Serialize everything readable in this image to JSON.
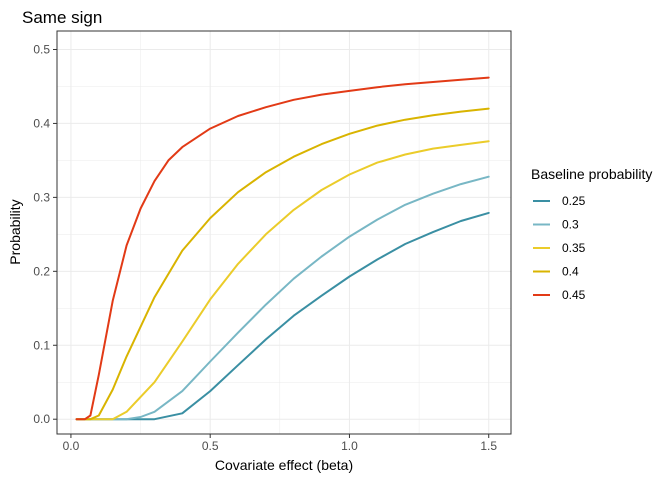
{
  "chart_data": {
    "type": "line",
    "title": "Same sign",
    "xlabel": "Covariate effect (beta)",
    "ylabel": "Probability",
    "xlim": [
      -0.05,
      1.58
    ],
    "ylim": [
      -0.02,
      0.525
    ],
    "x_ticks": [
      0.0,
      0.5,
      1.0,
      1.5
    ],
    "x_tick_labels": [
      "0.0",
      "0.5",
      "1.0",
      "1.5"
    ],
    "y_ticks": [
      0.0,
      0.1,
      0.2,
      0.3,
      0.4,
      0.5
    ],
    "y_tick_labels": [
      "0.0",
      "0.1",
      "0.2",
      "0.3",
      "0.4",
      "0.5"
    ],
    "grid": true,
    "legend": {
      "title": "Baseline probability",
      "placement": "right"
    },
    "series": [
      {
        "name": "0.25",
        "color": "#3a8fa3",
        "x": [
          0.02,
          0.1,
          0.2,
          0.3,
          0.4,
          0.5,
          0.6,
          0.7,
          0.8,
          0.9,
          1.0,
          1.1,
          1.2,
          1.3,
          1.4,
          1.5
        ],
        "y": [
          0.0,
          0.0,
          0.0,
          0.0,
          0.008,
          0.038,
          0.073,
          0.108,
          0.14,
          0.167,
          0.193,
          0.216,
          0.237,
          0.253,
          0.268,
          0.279
        ]
      },
      {
        "name": "0.3",
        "color": "#78b7c5",
        "x": [
          0.02,
          0.1,
          0.2,
          0.25,
          0.3,
          0.4,
          0.5,
          0.6,
          0.7,
          0.8,
          0.9,
          1.0,
          1.1,
          1.2,
          1.3,
          1.4,
          1.5
        ],
        "y": [
          0.0,
          0.0,
          0.0,
          0.003,
          0.01,
          0.038,
          0.078,
          0.117,
          0.155,
          0.19,
          0.22,
          0.247,
          0.27,
          0.29,
          0.305,
          0.318,
          0.328
        ]
      },
      {
        "name": "0.35",
        "color": "#ebcc2a",
        "x": [
          0.02,
          0.1,
          0.15,
          0.2,
          0.3,
          0.4,
          0.5,
          0.6,
          0.7,
          0.8,
          0.9,
          1.0,
          1.1,
          1.2,
          1.3,
          1.4,
          1.5
        ],
        "y": [
          0.0,
          0.0,
          0.0,
          0.01,
          0.05,
          0.105,
          0.162,
          0.21,
          0.25,
          0.283,
          0.31,
          0.331,
          0.347,
          0.358,
          0.366,
          0.371,
          0.376
        ]
      },
      {
        "name": "0.4",
        "color": "#d9b400",
        "x": [
          0.02,
          0.07,
          0.1,
          0.15,
          0.2,
          0.3,
          0.4,
          0.5,
          0.6,
          0.7,
          0.8,
          0.9,
          1.0,
          1.1,
          1.2,
          1.3,
          1.4,
          1.5
        ],
        "y": [
          0.0,
          0.0,
          0.005,
          0.04,
          0.085,
          0.165,
          0.228,
          0.272,
          0.307,
          0.334,
          0.355,
          0.372,
          0.386,
          0.397,
          0.405,
          0.411,
          0.416,
          0.42
        ]
      },
      {
        "name": "0.45",
        "color": "#e23a16",
        "x": [
          0.02,
          0.05,
          0.07,
          0.1,
          0.15,
          0.2,
          0.25,
          0.3,
          0.35,
          0.4,
          0.5,
          0.6,
          0.7,
          0.8,
          0.9,
          1.0,
          1.1,
          1.2,
          1.3,
          1.4,
          1.5
        ],
        "y": [
          0.0,
          0.0,
          0.005,
          0.06,
          0.16,
          0.235,
          0.285,
          0.322,
          0.35,
          0.368,
          0.393,
          0.41,
          0.422,
          0.432,
          0.439,
          0.444,
          0.449,
          0.453,
          0.456,
          0.459,
          0.462
        ]
      }
    ]
  }
}
